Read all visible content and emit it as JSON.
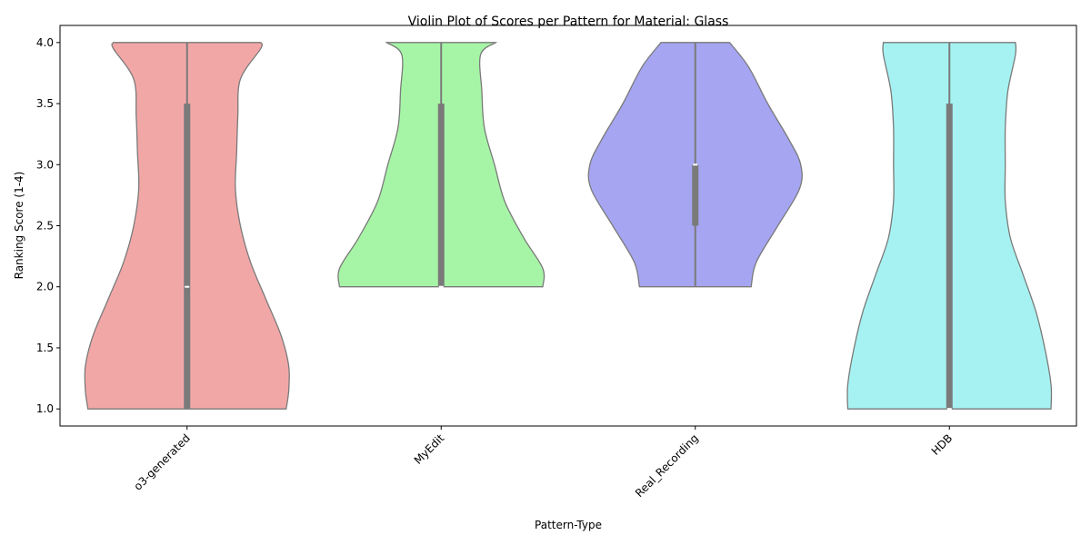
{
  "chart_data": {
    "type": "violin",
    "title": "Violin Plot of Scores per Pattern for Material: Glass",
    "xlabel": "Pattern-Type",
    "ylabel": "Ranking Score (1-4)",
    "ylim": [
      0.86,
      4.14
    ],
    "yticks": [
      "1.0",
      "1.5",
      "2.0",
      "2.5",
      "3.0",
      "3.5",
      "4.0"
    ],
    "grid": false,
    "categories": [
      "o3-generated",
      "MyEdit",
      "Real_Recording",
      "HDB"
    ],
    "series": [
      {
        "category": "o3-generated",
        "color": "#f2a7a7",
        "min": 1.0,
        "q1": 1.0,
        "median": 2.0,
        "q3": 3.5,
        "max": 4.0,
        "density": [
          [
            1.0,
            0.78
          ],
          [
            1.15,
            0.8
          ],
          [
            1.35,
            0.8
          ],
          [
            1.6,
            0.74
          ],
          [
            1.9,
            0.62
          ],
          [
            2.2,
            0.5
          ],
          [
            2.5,
            0.42
          ],
          [
            2.8,
            0.38
          ],
          [
            3.1,
            0.39
          ],
          [
            3.4,
            0.4
          ],
          [
            3.7,
            0.42
          ],
          [
            3.95,
            0.58
          ],
          [
            4.0,
            0.58
          ]
        ]
      },
      {
        "category": "MyEdit",
        "color": "#a6f5a6",
        "min": 2.0,
        "q1": 2.0,
        "median": 2.0,
        "q3": 3.5,
        "max": 4.0,
        "density": [
          [
            2.0,
            0.8
          ],
          [
            2.15,
            0.8
          ],
          [
            2.4,
            0.65
          ],
          [
            2.7,
            0.5
          ],
          [
            3.0,
            0.42
          ],
          [
            3.3,
            0.34
          ],
          [
            3.6,
            0.32
          ],
          [
            3.9,
            0.31
          ],
          [
            4.0,
            0.43
          ]
        ]
      },
      {
        "category": "Real_Recording",
        "color": "#a5a5f2",
        "min": 2.0,
        "q1": 2.5,
        "median": 3.0,
        "q3": 3.0,
        "max": 4.0,
        "density": [
          [
            2.0,
            0.44
          ],
          [
            2.2,
            0.48
          ],
          [
            2.5,
            0.65
          ],
          [
            2.8,
            0.82
          ],
          [
            3.0,
            0.83
          ],
          [
            3.2,
            0.74
          ],
          [
            3.5,
            0.57
          ],
          [
            3.8,
            0.42
          ],
          [
            4.0,
            0.27
          ]
        ]
      },
      {
        "category": "HDB",
        "color": "#a6f2f2",
        "min": 1.0,
        "q1": 1.0,
        "median": 1.0,
        "q3": 3.5,
        "max": 4.0,
        "density": [
          [
            1.0,
            0.8
          ],
          [
            1.2,
            0.8
          ],
          [
            1.5,
            0.75
          ],
          [
            1.8,
            0.68
          ],
          [
            2.1,
            0.58
          ],
          [
            2.4,
            0.48
          ],
          [
            2.7,
            0.44
          ],
          [
            3.0,
            0.44
          ],
          [
            3.3,
            0.44
          ],
          [
            3.6,
            0.46
          ],
          [
            3.9,
            0.52
          ],
          [
            4.0,
            0.52
          ]
        ]
      }
    ]
  }
}
